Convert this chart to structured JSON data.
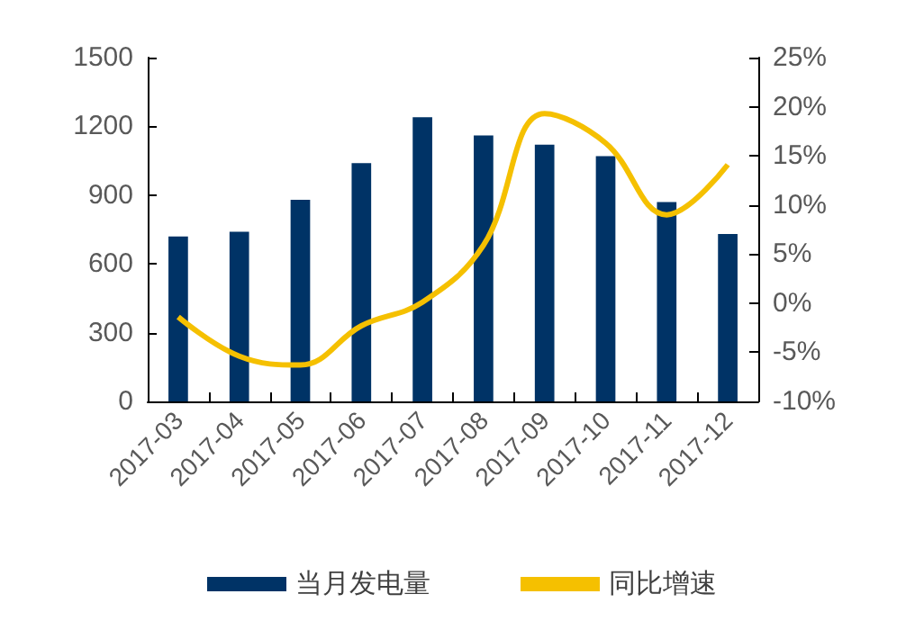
{
  "chart_data": {
    "type": "bar",
    "categories": [
      "2017-03",
      "2017-04",
      "2017-05",
      "2017-06",
      "2017-07",
      "2017-08",
      "2017-09",
      "2017-10",
      "2017-11",
      "2017-12"
    ],
    "series": [
      {
        "name": "当月发电量",
        "color": "#003366",
        "values": [
          720,
          740,
          880,
          1040,
          1240,
          1160,
          1120,
          1070,
          870,
          730
        ]
      },
      {
        "name": "同比增速",
        "type": "line",
        "axis": "y2",
        "color": "#f5c000",
        "values": [
          -1.4,
          -5.4,
          -6.3,
          -2.3,
          0.1,
          5.9,
          19.3,
          16.3,
          9,
          14.1
        ]
      }
    ],
    "ylim": [
      0,
      1500
    ],
    "yticks": [
      0,
      300,
      600,
      900,
      1200,
      1500
    ],
    "y2lim": [
      -10,
      25
    ],
    "y2ticks": [
      {
        "value": -10,
        "label": "-10%"
      },
      {
        "value": -5,
        "label": "-5%"
      },
      {
        "value": 0,
        "label": "0%"
      },
      {
        "value": 5,
        "label": "5%"
      },
      {
        "value": 10,
        "label": "10%"
      },
      {
        "value": 15,
        "label": "15%"
      },
      {
        "value": 20,
        "label": "20%"
      },
      {
        "value": 25,
        "label": "25%"
      }
    ],
    "legend": "bottom",
    "grid": false,
    "marker": "none"
  }
}
